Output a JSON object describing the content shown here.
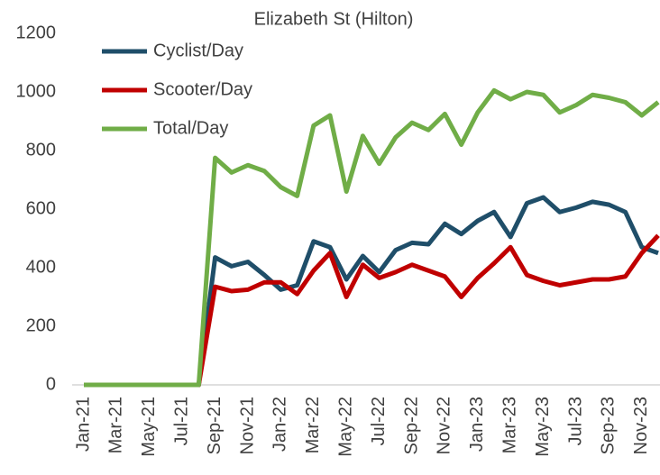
{
  "chart_data": {
    "type": "line",
    "title": "Elizabeth St (Hilton)",
    "categories": [
      "Jan-21",
      null,
      "Mar-21",
      null,
      "May-21",
      null,
      "Jul-21",
      null,
      "Sep-21",
      null,
      "Nov-21",
      null,
      "Jan-22",
      null,
      "Mar-22",
      null,
      "May-22",
      null,
      "Jul-22",
      null,
      "Sep-22",
      null,
      "Nov-22",
      null,
      "Jan-23",
      null,
      "Mar-23",
      null,
      "May-23",
      null,
      "Jul-23",
      null,
      "Sep-23",
      null,
      "Nov-23",
      null
    ],
    "series": [
      {
        "name": "Cyclist/Day",
        "color": "#1f4e69",
        "values": [
          0,
          0,
          0,
          0,
          0,
          0,
          0,
          0,
          435,
          405,
          420,
          375,
          325,
          340,
          490,
          470,
          360,
          440,
          385,
          460,
          485,
          480,
          550,
          515,
          560,
          590,
          505,
          620,
          640,
          590,
          605,
          625,
          615,
          590,
          470,
          450
        ]
      },
      {
        "name": "Scooter/Day",
        "color": "#c00000",
        "values": [
          0,
          0,
          0,
          0,
          0,
          0,
          0,
          0,
          335,
          320,
          325,
          350,
          350,
          310,
          390,
          450,
          300,
          410,
          365,
          385,
          410,
          390,
          370,
          300,
          365,
          415,
          470,
          375,
          355,
          340,
          350,
          360,
          360,
          370,
          450,
          510
        ]
      },
      {
        "name": "Total/Day",
        "color": "#70ad47",
        "values": [
          0,
          0,
          0,
          0,
          0,
          0,
          0,
          0,
          775,
          725,
          750,
          730,
          675,
          645,
          885,
          920,
          660,
          850,
          755,
          845,
          895,
          870,
          925,
          820,
          930,
          1005,
          975,
          1000,
          990,
          930,
          955,
          990,
          980,
          965,
          920,
          965
        ]
      }
    ],
    "ylim": [
      0,
      1200
    ],
    "yticks": [
      0,
      200,
      400,
      600,
      800,
      1000,
      1200
    ],
    "grid": false,
    "legend": "top-left"
  }
}
